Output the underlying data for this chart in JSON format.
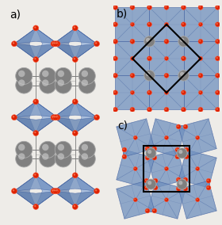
{
  "bg_color": "#eeece8",
  "oct_face_color": "#7090be",
  "oct_edge_color": "#4060a0",
  "oct_alpha": 0.75,
  "Sr_color": "#909090",
  "Sr_edge_color": "#cccccc",
  "O_color": "#dd2200",
  "O_edge_color": "#ff6644",
  "Ru_color": "#dd2200",
  "unit_cell_color": "#000000",
  "label_fontsize": 10,
  "label_a": "a)",
  "label_b": "b)",
  "label_c": "c)"
}
